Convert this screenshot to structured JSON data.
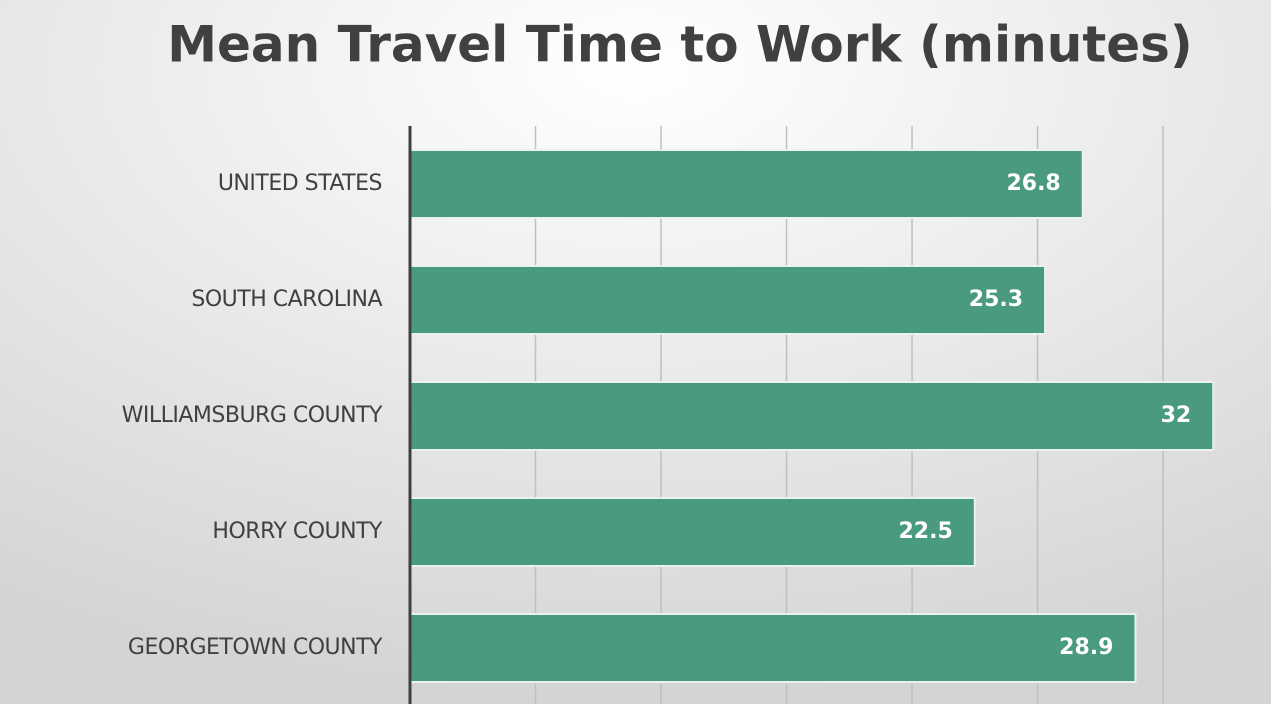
{
  "chart_data": {
    "type": "bar",
    "orientation": "horizontal",
    "title": "Mean Travel Time to Work (minutes)",
    "categories": [
      "UNITED STATES",
      "SOUTH CAROLINA",
      "WILLIAMSBURG COUNTY",
      "HORRY COUNTY",
      "GEORGETOWN COUNTY"
    ],
    "values": [
      26.8,
      25.3,
      32,
      22.5,
      28.9
    ],
    "color": "#4a9a80",
    "xlim": [
      0,
      34.3
    ],
    "xticks": [
      0,
      5,
      10,
      15,
      20,
      25,
      30
    ],
    "grid": true
  }
}
